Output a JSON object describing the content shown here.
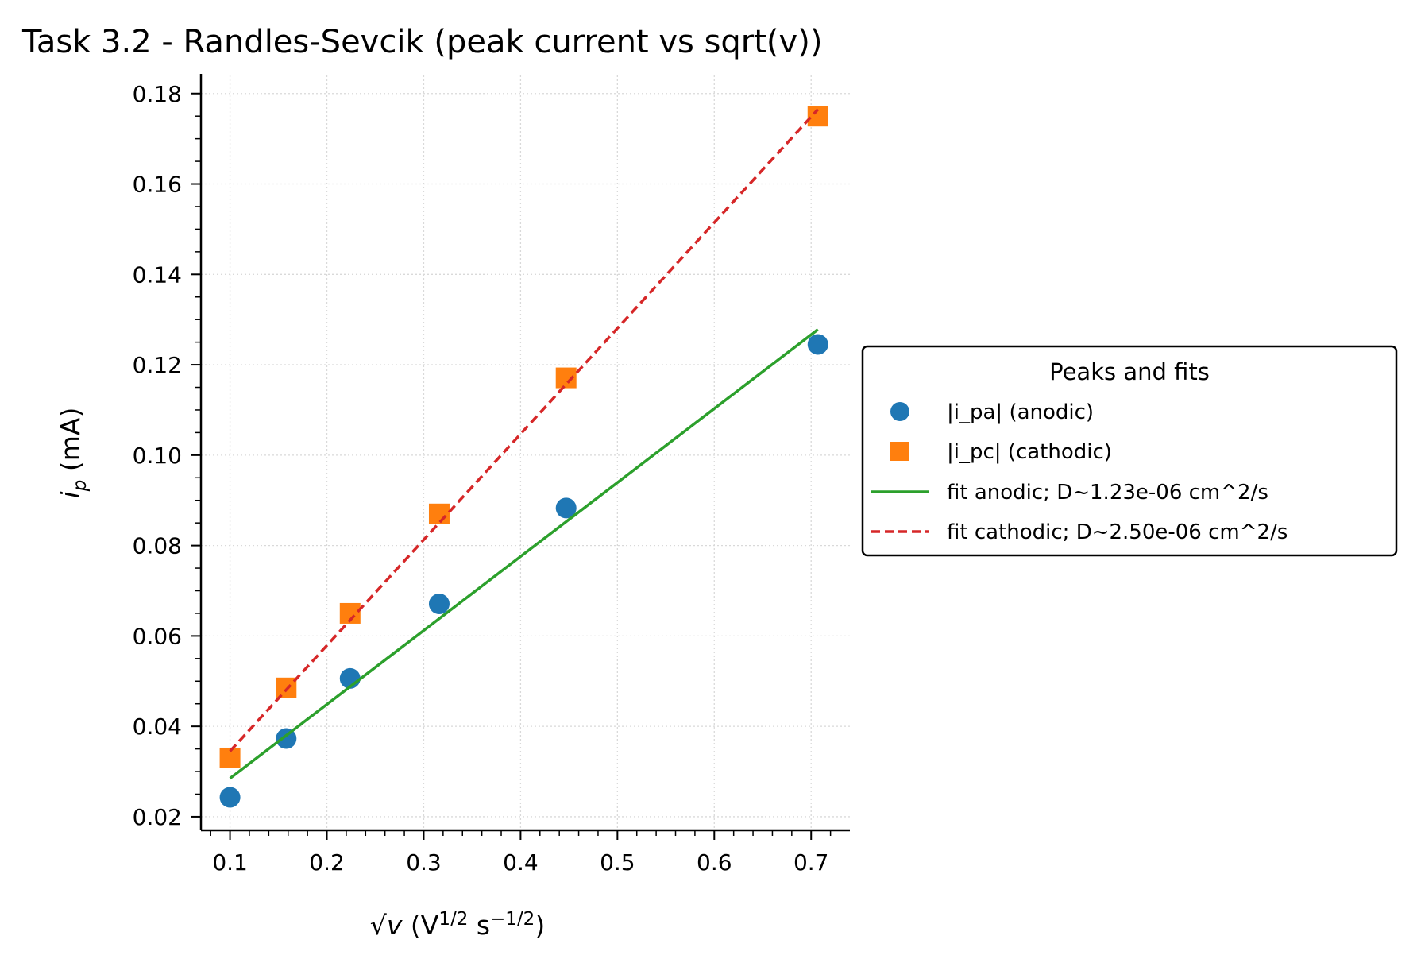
{
  "chart_data": {
    "type": "scatter",
    "title": "Task 3.2 - Randles-Sevcik (peak current vs sqrt(v))",
    "xlabel": {
      "pre": "√",
      "var": "v",
      "mid": " (V",
      "sup1": "1/2",
      "mid2": " s",
      "sup2": "−1/2",
      "post": ")"
    },
    "ylabel": {
      "var": "i",
      "sub": "p",
      "rest": " (mA)"
    },
    "xlim": [
      0.07,
      0.74
    ],
    "ylim": [
      0.017,
      0.184
    ],
    "grid": true,
    "xticks": [
      0.1,
      0.2,
      0.3,
      0.4,
      0.5,
      0.6,
      0.7
    ],
    "xtick_labels": [
      "0.1",
      "0.2",
      "0.3",
      "0.4",
      "0.5",
      "0.6",
      "0.7"
    ],
    "yticks": [
      0.02,
      0.04,
      0.06,
      0.08,
      0.1,
      0.12,
      0.14,
      0.16,
      0.18
    ],
    "ytick_labels": [
      "0.02",
      "0.04",
      "0.06",
      "0.08",
      "0.10",
      "0.12",
      "0.14",
      "0.16",
      "0.18"
    ],
    "legend": {
      "title": "Peaks and fits",
      "placement": "outside right",
      "entries": [
        "|i_pa| (anodic)",
        "|i_pc| (cathodic)",
        "fit anodic; D~1.23e-06 cm^2/s",
        "fit cathodic; D~2.50e-06 cm^2/s"
      ]
    },
    "series": [
      {
        "name": "|i_pa| (anodic)",
        "kind": "points",
        "marker": "circle",
        "color": "#1f77b4",
        "x": [
          0.1,
          0.158,
          0.224,
          0.316,
          0.447,
          0.707
        ],
        "y": [
          0.0243,
          0.0373,
          0.0506,
          0.0671,
          0.0883,
          0.1245
        ]
      },
      {
        "name": "|i_pc| (cathodic)",
        "kind": "points",
        "marker": "square",
        "color": "#ff7f0e",
        "x": [
          0.1,
          0.158,
          0.224,
          0.316,
          0.447,
          0.707
        ],
        "y": [
          0.033,
          0.0485,
          0.065,
          0.087,
          0.1171,
          0.175
        ]
      },
      {
        "name": "fit anodic; D~1.23e-06 cm^2/s",
        "kind": "line",
        "style": "solid",
        "color": "#2ca02c",
        "x": [
          0.1,
          0.707
        ],
        "y": [
          0.0285,
          0.1278
        ]
      },
      {
        "name": "fit cathodic; D~2.50e-06 cm^2/s",
        "kind": "line",
        "style": "dashed",
        "color": "#d62728",
        "x": [
          0.1,
          0.707
        ],
        "y": [
          0.0345,
          0.1765
        ]
      }
    ]
  }
}
